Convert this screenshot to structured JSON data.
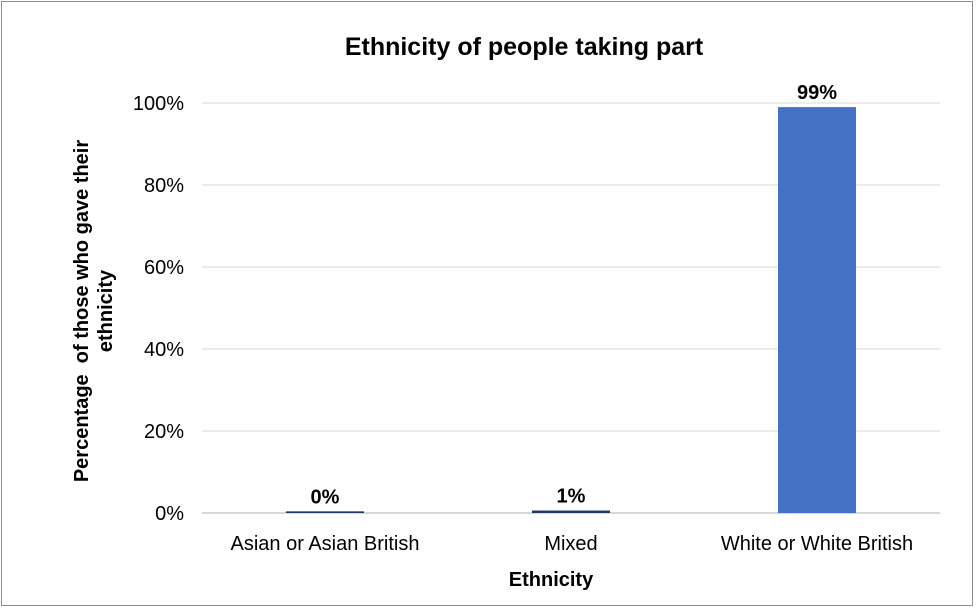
{
  "chart_data": {
    "type": "bar",
    "title": "Ethnicity of people taking part",
    "xlabel": "Ethnicity",
    "ylabel_lines": [
      "Percentage  of those who gave their",
      "ethnicity"
    ],
    "categories": [
      "Asian or Asian British",
      "Mixed",
      "White or White British"
    ],
    "values": [
      0.4,
      0.6,
      99
    ],
    "data_labels": [
      "0%",
      "1%",
      "99%"
    ],
    "yticks": [
      "0%",
      "20%",
      "40%",
      "60%",
      "80%",
      "100%"
    ],
    "ylim": [
      0,
      100
    ],
    "grid": true,
    "bar_color": "#4472c4",
    "small_bar_color": "#1f3864"
  }
}
